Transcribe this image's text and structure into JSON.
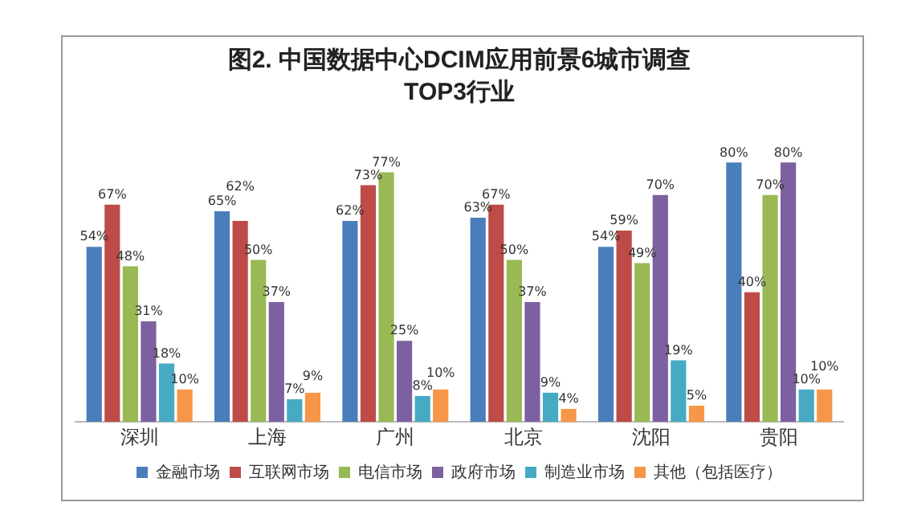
{
  "chart_data": {
    "type": "bar",
    "title": "图2. 中国数据中心DCIM应用前景6城市调查",
    "subtitle": "TOP3行业",
    "categories": [
      "深圳",
      "上海",
      "广州",
      "北京",
      "沈阳",
      "贵阳"
    ],
    "series": [
      {
        "name": "金融市场",
        "color": "#4a7ebb",
        "values": [
          54,
          65,
          62,
          63,
          54,
          80
        ],
        "value_labels": [
          "54%",
          "65%",
          "62%",
          "63%",
          "54%",
          "80%"
        ]
      },
      {
        "name": "互联网市场",
        "color": "#be4b48",
        "values": [
          67,
          62,
          73,
          67,
          59,
          40
        ],
        "value_labels": [
          "67%",
          "62%",
          "73%",
          "67%",
          "59%",
          "40%"
        ]
      },
      {
        "name": "电信市场",
        "color": "#98b954",
        "values": [
          48,
          50,
          77,
          50,
          49,
          70
        ],
        "value_labels": [
          "48%",
          "50%",
          "77%",
          "50%",
          "49%",
          "70%"
        ]
      },
      {
        "name": "政府市场",
        "color": "#7d60a0",
        "values": [
          31,
          37,
          25,
          37,
          70,
          80
        ],
        "value_labels": [
          "31%",
          "37%",
          "25%",
          "37%",
          "70%",
          "80%"
        ]
      },
      {
        "name": "制造业市场",
        "color": "#46aac5",
        "values": [
          18,
          7,
          8,
          9,
          19,
          10
        ],
        "value_labels": [
          "18%",
          "7%",
          "8%",
          "9%",
          "19%",
          "10%"
        ]
      },
      {
        "name": "其他（包括医疗）",
        "color": "#f79646",
        "values": [
          10,
          9,
          10,
          4,
          5,
          10
        ],
        "value_labels": [
          "10%",
          "9%",
          "10%",
          "4%",
          "5%",
          "10%"
        ]
      }
    ],
    "grid": false,
    "legend": "bottom"
  }
}
